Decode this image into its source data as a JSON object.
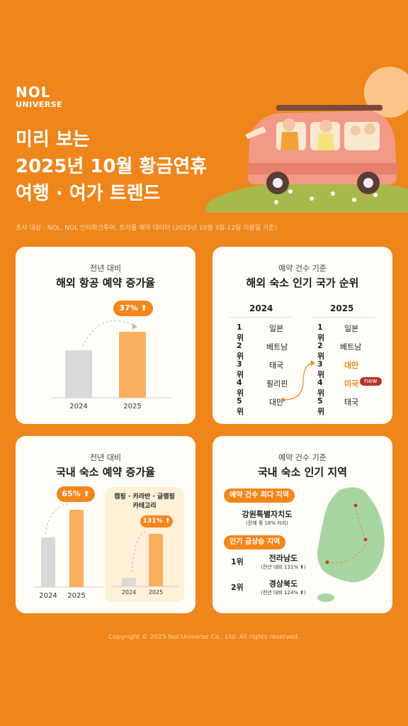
{
  "brand": {
    "line1": "NOL",
    "line2": "UNIVERSE"
  },
  "headline": {
    "line1": "미리 보는",
    "line2": "2025년 10월 황금연휴",
    "line3": "여행 · 여가 트렌드"
  },
  "survey_note": "조사 대상 : NOL, NOL 인터파크투어, 트리플 예약 데이터 (2025년 10월 3일-12일 이용일 기준)",
  "card_air": {
    "subtitle": "전년 대비",
    "title": "해외 항공 예약 증가율",
    "growth": "37%",
    "years": [
      "2024",
      "2025"
    ]
  },
  "card_countries": {
    "subtitle": "예약 건수 기준",
    "title": "해외 숙소 인기 국가 순위",
    "col_2024": "2024",
    "col_2025": "2025",
    "ranks": [
      "1위",
      "2위",
      "3위",
      "4위",
      "5위"
    ],
    "list_2024": [
      "일본",
      "베트남",
      "태국",
      "필리핀",
      "대만"
    ],
    "list_2025": [
      "일본",
      "베트남",
      "대만",
      "미국",
      "태국"
    ],
    "new_badge": "new"
  },
  "card_domestic": {
    "subtitle": "전년 대비",
    "title": "국내 숙소 예약 증가율",
    "growth": "65%",
    "years": [
      "2024",
      "2025"
    ],
    "camping_title_1": "캠핑 · 카라반 · 글램핑",
    "camping_title_2": "카테고리",
    "camping_growth": "131%"
  },
  "card_regions": {
    "subtitle": "예약 건수 기준",
    "title": "국내 숙소 인기 지역",
    "most_label": "예약 건수 최다 지역",
    "most_region": "강원특별자치도",
    "most_note": "(전체 중 18% 차지)",
    "surge_label": "인기 급상승 지역",
    "surge": [
      {
        "rank": "1위",
        "region": "전라남도",
        "note": "(전년 대비 131% ⬆)"
      },
      {
        "rank": "2위",
        "region": "경상북도",
        "note": "(전년 대비 124% ⬆)"
      }
    ]
  },
  "footer": "Copyright © 2025 Nol Universe Co., Ltd. All rights reserved.",
  "colors": {
    "background": "#ef861b",
    "accent": "#f4861b",
    "bar_gray": "#d9d9d9",
    "bar_orange": "#f8b060",
    "badge_red": "#b5322b"
  }
}
